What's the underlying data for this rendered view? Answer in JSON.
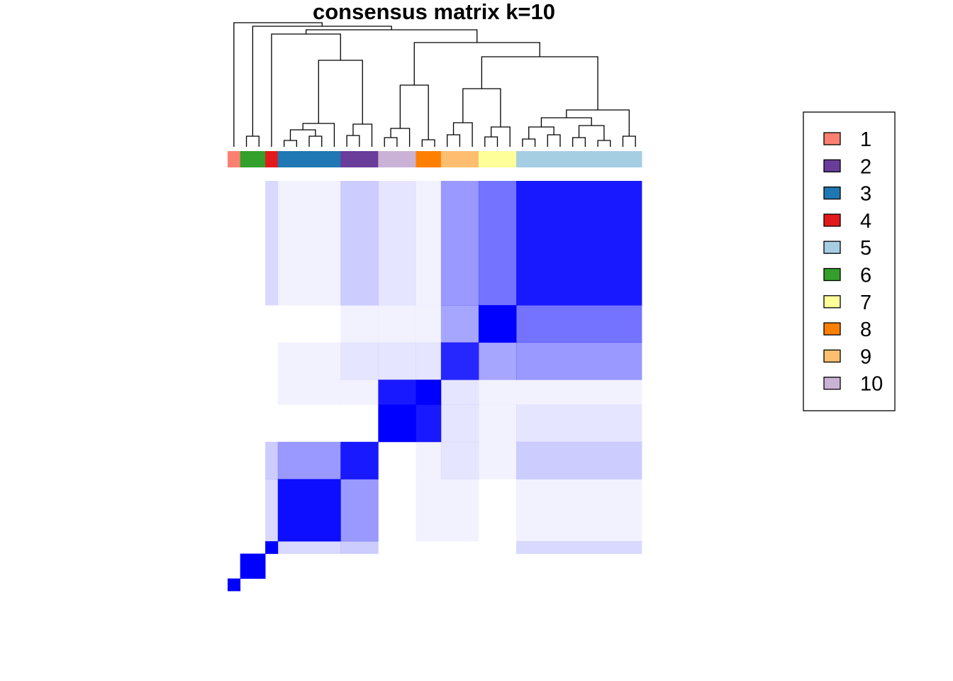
{
  "chart_data": {
    "type": "heatmap",
    "title": "consensus matrix k=10",
    "matrix_color": "#0000ff",
    "background_color": "#ffffff",
    "value_range": [
      0,
      1
    ],
    "clusters": [
      {
        "label": "1",
        "color": "#fb8072",
        "size": 1
      },
      {
        "label": "6",
        "color": "#33a02c",
        "size": 2
      },
      {
        "label": "4",
        "color": "#e31a1c",
        "size": 1
      },
      {
        "label": "3",
        "color": "#1f78b4",
        "size": 5
      },
      {
        "label": "2",
        "color": "#6a3d9a",
        "size": 3
      },
      {
        "label": "10",
        "color": "#cab2d6",
        "size": 3
      },
      {
        "label": "8",
        "color": "#ff7f00",
        "size": 2
      },
      {
        "label": "9",
        "color": "#fdbf6f",
        "size": 3
      },
      {
        "label": "7",
        "color": "#ffff99",
        "size": 3
      },
      {
        "label": "5",
        "color": "#a6cee3",
        "size": 10
      }
    ],
    "block_values": [
      [
        1.0,
        0.0,
        0.0,
        0.0,
        0.0,
        0.0,
        0.0,
        0.0,
        0.0,
        0.0
      ],
      [
        0.0,
        1.0,
        0.0,
        0.0,
        0.0,
        0.0,
        0.0,
        0.0,
        0.0,
        0.0
      ],
      [
        0.0,
        0.0,
        1.0,
        0.15,
        0.2,
        0.0,
        0.0,
        0.0,
        0.0,
        0.15
      ],
      [
        0.0,
        0.0,
        0.15,
        0.95,
        0.4,
        0.0,
        0.05,
        0.05,
        0.0,
        0.05
      ],
      [
        0.0,
        0.0,
        0.2,
        0.4,
        0.9,
        0.0,
        0.05,
        0.1,
        0.05,
        0.2
      ],
      [
        0.0,
        0.0,
        0.0,
        0.0,
        0.0,
        1.0,
        0.9,
        0.1,
        0.05,
        0.1
      ],
      [
        0.0,
        0.0,
        0.0,
        0.05,
        0.05,
        0.9,
        1.0,
        0.1,
        0.05,
        0.05
      ],
      [
        0.0,
        0.0,
        0.0,
        0.05,
        0.1,
        0.1,
        0.1,
        0.85,
        0.35,
        0.4
      ],
      [
        0.0,
        0.0,
        0.0,
        0.0,
        0.05,
        0.05,
        0.05,
        0.35,
        1.0,
        0.55
      ],
      [
        0.0,
        0.0,
        0.15,
        0.05,
        0.2,
        0.1,
        0.05,
        0.4,
        0.55,
        0.9
      ]
    ],
    "legend": {
      "position": "right",
      "entries": [
        {
          "label": "1",
          "color": "#fb8072"
        },
        {
          "label": "2",
          "color": "#6a3d9a"
        },
        {
          "label": "3",
          "color": "#1f78b4"
        },
        {
          "label": "4",
          "color": "#e31a1c"
        },
        {
          "label": "5",
          "color": "#a6cee3"
        },
        {
          "label": "6",
          "color": "#33a02c"
        },
        {
          "label": "7",
          "color": "#ffff99"
        },
        {
          "label": "8",
          "color": "#ff7f00"
        },
        {
          "label": "9",
          "color": "#fdbf6f"
        },
        {
          "label": "10",
          "color": "#cab2d6"
        }
      ]
    }
  }
}
